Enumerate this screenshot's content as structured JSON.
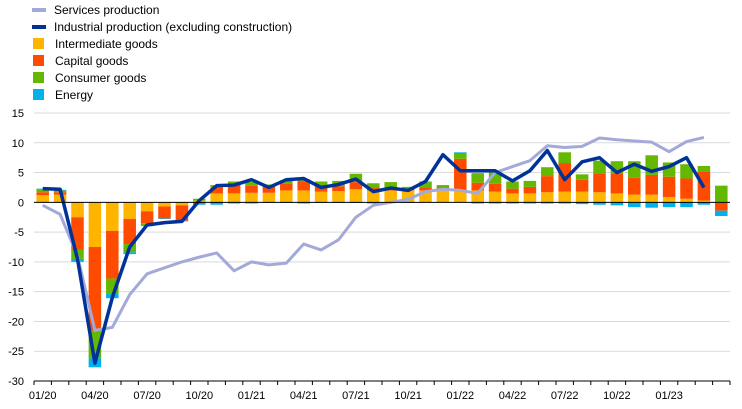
{
  "chart_data": {
    "type": "bar",
    "stacked": true,
    "ylim": [
      -30,
      15
    ],
    "yticks": [
      -30,
      -25,
      -20,
      -15,
      -10,
      -5,
      0,
      5,
      10,
      15
    ],
    "x_tick_labels": [
      "01/20",
      "04/20",
      "07/20",
      "10/20",
      "01/21",
      "04/21",
      "07/21",
      "10/21",
      "01/22",
      "04/22",
      "07/22",
      "10/22",
      "01/23"
    ],
    "x_tick_every": 3,
    "grid": "horizontal",
    "legend_position": "top-left",
    "colors": {
      "services": "#a3a9d8",
      "industrial": "#003299",
      "intermediate": "#ffb400",
      "capital": "#ff4b00",
      "consumer": "#65b800",
      "energy": "#00b1ea"
    },
    "legend": [
      {
        "key": "services",
        "label": "Services production",
        "kind": "line"
      },
      {
        "key": "industrial",
        "label": "Industrial production (excluding construction)",
        "kind": "line"
      },
      {
        "key": "intermediate",
        "label": "Intermediate goods",
        "kind": "bar"
      },
      {
        "key": "capital",
        "label": "Capital goods",
        "kind": "bar"
      },
      {
        "key": "consumer",
        "label": "Consumer goods",
        "kind": "bar"
      },
      {
        "key": "energy",
        "label": "Energy",
        "kind": "bar"
      }
    ],
    "months": [
      "01/20",
      "02/20",
      "03/20",
      "04/20",
      "05/20",
      "06/20",
      "07/20",
      "08/20",
      "09/20",
      "10/20",
      "11/20",
      "12/20",
      "01/21",
      "02/21",
      "03/21",
      "04/21",
      "05/21",
      "06/21",
      "07/21",
      "08/21",
      "09/21",
      "10/21",
      "11/21",
      "12/21",
      "01/22",
      "02/22",
      "03/22",
      "04/22",
      "05/22",
      "06/22",
      "07/22",
      "08/22",
      "09/22",
      "10/22",
      "11/22",
      "12/22",
      "01/23",
      "02/23",
      "03/23"
    ],
    "bar_series": [
      {
        "key": "intermediate",
        "values": [
          1.2,
          1.3,
          -2.5,
          -7.5,
          -4.8,
          -2.8,
          -1.5,
          -0.7,
          -0.5,
          0.3,
          1.5,
          1.5,
          1.6,
          1.6,
          2.0,
          2.0,
          1.8,
          1.9,
          2.2,
          2.0,
          2.0,
          2.0,
          2.0,
          2.0,
          2.0,
          2.0,
          1.8,
          1.5,
          1.5,
          1.7,
          1.8,
          1.8,
          1.7,
          1.5,
          1.3,
          1.3,
          0.9,
          0.6,
          0.3
        ]
      },
      {
        "key": "capital",
        "values": [
          0.5,
          0.4,
          -5.5,
          -14.0,
          -8.0,
          -4.2,
          -2.0,
          -2.0,
          -2.6,
          -0.2,
          1.0,
          1.5,
          1.2,
          1.0,
          1.2,
          1.5,
          1.0,
          0.8,
          1.2,
          0.4,
          0.3,
          0.2,
          0.5,
          0.5,
          5.3,
          1.3,
          1.3,
          0.8,
          1.1,
          2.7,
          4.8,
          2.0,
          3.2,
          3.4,
          2.8,
          3.3,
          3.4,
          3.4,
          4.8
        ]
      },
      {
        "key": "consumer",
        "values": [
          0.4,
          0.3,
          -1.5,
          -4.7,
          -2.6,
          -1.4,
          -0.4,
          0.0,
          0.0,
          0.3,
          0.4,
          0.5,
          0.6,
          0.4,
          0.5,
          0.4,
          0.7,
          0.9,
          1.4,
          0.8,
          1.1,
          0.4,
          0.9,
          0.4,
          0.9,
          1.6,
          1.9,
          1.2,
          1.0,
          1.5,
          1.8,
          0.9,
          2.1,
          2.0,
          2.8,
          3.3,
          2.4,
          2.4,
          1.0
        ]
      },
      {
        "key": "energy",
        "values": [
          0.2,
          0.1,
          -0.5,
          -1.5,
          -0.7,
          -0.3,
          -0.1,
          -0.1,
          -0.1,
          -0.2,
          -0.4,
          -0.2,
          -0.2,
          -0.1,
          -0.1,
          -0.2,
          -0.1,
          -0.1,
          -0.1,
          -0.2,
          -0.1,
          -0.1,
          0.1,
          0.0,
          0.2,
          -0.2,
          -0.2,
          -0.2,
          -0.2,
          -0.2,
          -0.2,
          -0.3,
          -0.4,
          -0.5,
          -0.8,
          -0.9,
          -0.8,
          -0.8,
          -0.4
        ]
      }
    ],
    "extra_bars": [
      {
        "key": "capital",
        "index": 39,
        "values": {
          "intermediate": -0.1,
          "capital": -1.3,
          "consumer": 2.8,
          "energy": -0.9
        }
      }
    ],
    "line_series": [
      {
        "key": "services",
        "values": [
          -0.5,
          -2.0,
          -9.0,
          -21.5,
          -21.0,
          -15.5,
          -12.0,
          -11.0,
          -10.0,
          -9.2,
          -8.5,
          -11.5,
          -10.0,
          -10.5,
          -10.2,
          -7.0,
          -8.0,
          -6.3,
          -2.5,
          -0.5,
          0.0,
          0.5,
          1.8,
          2.2,
          2.0,
          1.5,
          5.0,
          6.0,
          7.0,
          9.5,
          9.2,
          9.4,
          10.8,
          10.5,
          10.3,
          10.1,
          8.5,
          10.2,
          10.9
        ]
      },
      {
        "key": "industrial",
        "values": [
          2.3,
          2.2,
          -9.5,
          -27.0,
          -16.0,
          -7.5,
          -3.8,
          -3.4,
          -3.2,
          0.3,
          2.8,
          2.9,
          3.8,
          2.5,
          3.8,
          4.0,
          2.5,
          3.0,
          3.9,
          1.8,
          2.4,
          2.0,
          3.5,
          8.0,
          5.3,
          5.3,
          5.3,
          3.6,
          5.3,
          8.7,
          3.8,
          6.8,
          7.5,
          5.0,
          6.4,
          5.2,
          6.0,
          7.5,
          2.5
        ]
      }
    ]
  }
}
